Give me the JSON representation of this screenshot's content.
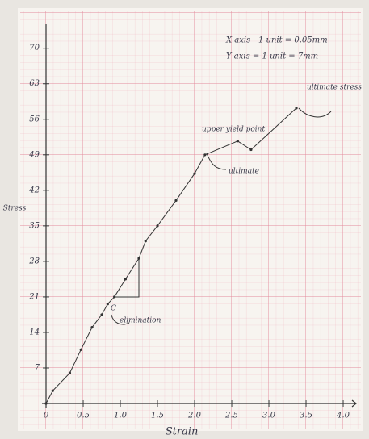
{
  "chart_data": {
    "type": "line",
    "x_label": "Strain",
    "y_label": "Stress",
    "notes": [
      "X axis - 1 unit = 0.05mm",
      "Y axis = 1 unit = 7mm"
    ],
    "annotations": [
      "upper yield point",
      "ultimate",
      "ultimate stress",
      "elimination",
      "C"
    ],
    "x": [
      0,
      0.09,
      0.32,
      0.47,
      0.62,
      0.75,
      0.83,
      0.92,
      1.07,
      1.25,
      1.34,
      1.5,
      1.75,
      2.0,
      2.14,
      2.58,
      2.76,
      3.37
    ],
    "series": [
      {
        "color": "#333333",
        "values": [
          0,
          2.5,
          6.0,
          10.6,
          15,
          17.5,
          19.6,
          21,
          24.5,
          28.6,
          32,
          35,
          40,
          45.3,
          49,
          51.7,
          50,
          58.2
        ]
      }
    ],
    "xlim": [
      0,
      4.2
    ],
    "ylim": [
      0,
      75
    ],
    "xticks": [
      0,
      0.5,
      {
        "value": 1,
        "label": "1.0"
      },
      1.5,
      {
        "value": 2,
        "label": "2.0"
      },
      2.5,
      {
        "value": 3,
        "label": "3.0"
      },
      3.5,
      {
        "value": 4,
        "label": "4.0"
      }
    ],
    "yticks": [
      7,
      14,
      21,
      28,
      35,
      42,
      49,
      56,
      63,
      70
    ],
    "grid": true
  }
}
